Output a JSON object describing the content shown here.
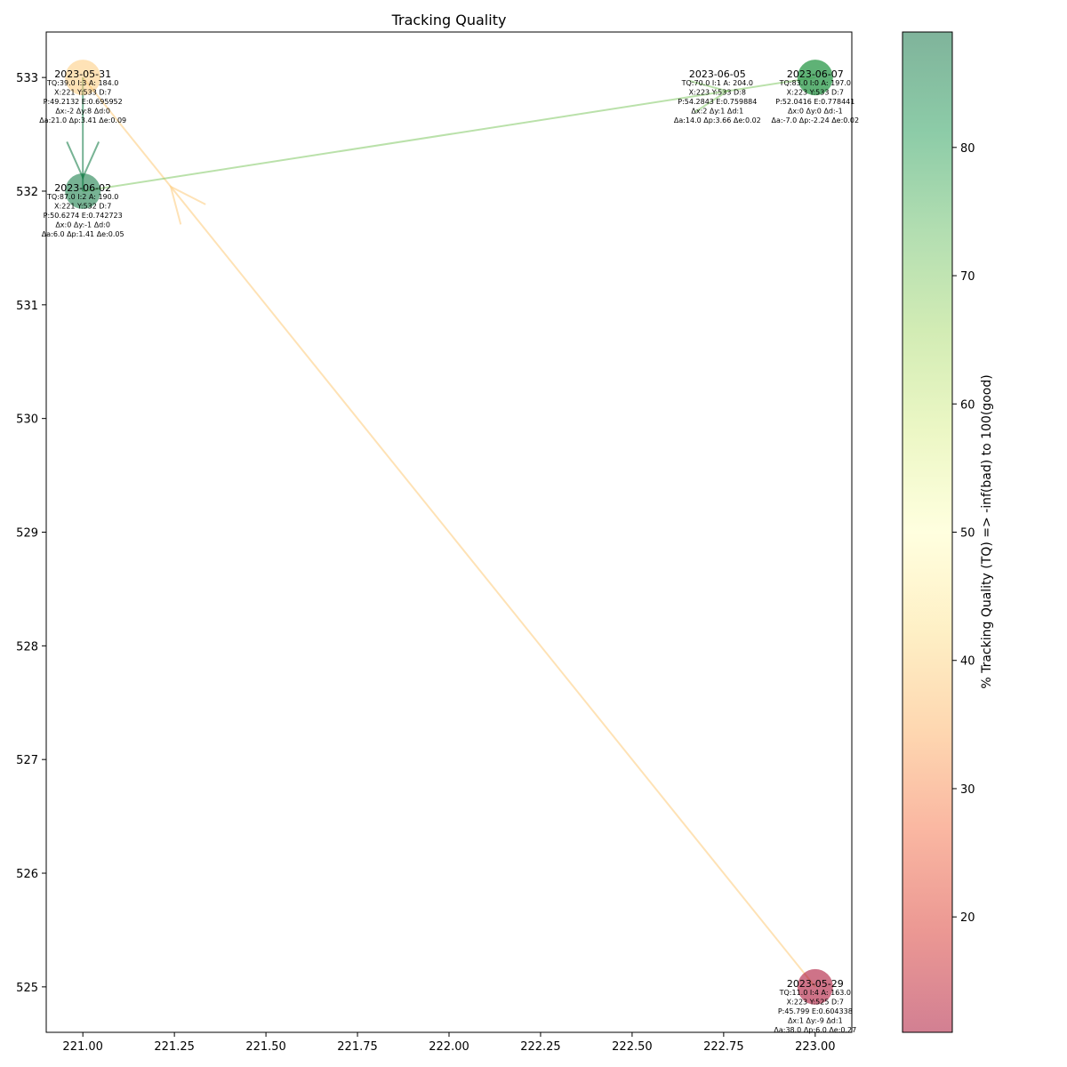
{
  "chart_data": {
    "type": "scatter",
    "title": "Tracking Quality",
    "xlabel": "",
    "ylabel": "",
    "xlim": [
      220.9,
      223.1
    ],
    "ylim": [
      524.6,
      533.4
    ],
    "x_ticks": [
      "221.00",
      "221.25",
      "221.50",
      "221.75",
      "222.00",
      "222.25",
      "222.50",
      "222.75",
      "223.00"
    ],
    "y_ticks": [
      "525",
      "526",
      "527",
      "528",
      "529",
      "530",
      "531",
      "532",
      "533"
    ],
    "grid": false,
    "colorbar": {
      "label": "% Tracking Quality (TQ) => -inf(bad) to 100(good)",
      "range": [
        11,
        89
      ],
      "ticks": [
        "20",
        "30",
        "40",
        "50",
        "60",
        "70",
        "80"
      ],
      "colormap": "RdYlGn"
    },
    "points": [
      {
        "date": "2023-05-29",
        "x": 223,
        "y": 525,
        "tq": 11,
        "lines": [
          "TQ:11.0 I:4 A: 163.0",
          "X:223 Y:525 D:7",
          "P:45.799 E:0.604338",
          "Δx:1 Δy:-9 Δd:1",
          "Δa:38.0 Δp:6.0 Δe:0.27"
        ]
      },
      {
        "date": "2023-05-31",
        "x": 221,
        "y": 533,
        "tq": 39,
        "lines": [
          "TQ:39.0 I:3 A: 184.0",
          "X:221 Y:533 D:7",
          "P:49.2132 E:0.695952",
          "Δx:-2 Δy:8 Δd:0",
          "Δa:21.0 Δp:3.41 Δe:0.09"
        ]
      },
      {
        "date": "2023-06-02",
        "x": 221,
        "y": 532,
        "tq": 87,
        "lines": [
          "TQ:87.0 I:2 A: 190.0",
          "X:221 Y:532 D:7",
          "P:50.6274 E:0.742723",
          "Δx:0 Δy:-1 Δd:0",
          "Δa:6.0 Δp:1.41 Δe:0.05"
        ]
      },
      {
        "date": "2023-06-05",
        "x": 223,
        "y": 533,
        "tq": 70,
        "lines": [
          "TQ:70.0 I:1 A: 204.0",
          "X:223 Y:533 D:8",
          "P:54.2843 E:0.759884",
          "Δx:2 Δy:1 Δd:1",
          "Δa:14.0 Δp:3.66 Δe:0.02"
        ]
      },
      {
        "date": "2023-06-07",
        "x": 223,
        "y": 533,
        "tq": 83,
        "lines": [
          "TQ:83.0 I:0 A: 197.0",
          "X:223 Y:533 D:7",
          "P:52.0416 E:0.778441",
          "Δx:0 Δy:0 Δd:-1",
          "Δa:-7.0 Δp:-2.24 Δe:0.02"
        ]
      }
    ],
    "arrows": [
      {
        "from": 0,
        "to": 1,
        "color": "#f3a582"
      },
      {
        "from": 1,
        "to": 2,
        "color": "#d9ef8b"
      },
      {
        "from": 2,
        "to": 3,
        "color": "#5cb85c"
      },
      {
        "from": 3,
        "to": 4,
        "color": "#a6d96a"
      }
    ]
  }
}
